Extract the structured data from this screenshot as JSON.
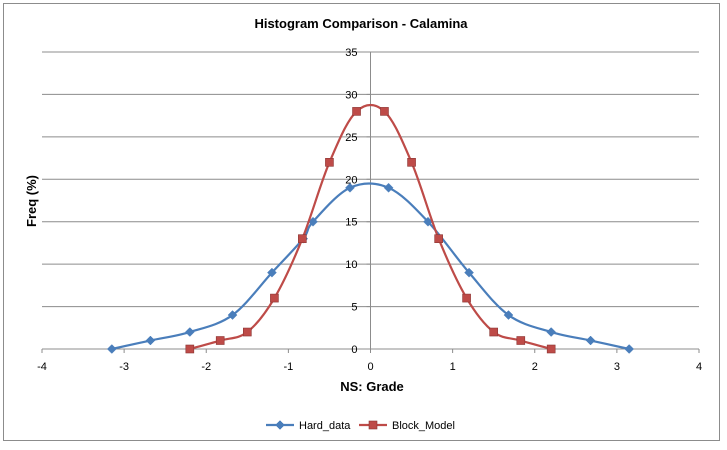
{
  "chart_data": {
    "type": "line",
    "title": "Histogram Comparison - Calamina",
    "xlabel": "NS: Grade",
    "ylabel": "Freq (%)",
    "xlim": [
      -4,
      4
    ],
    "ylim": [
      0,
      35
    ],
    "x_ticks": [
      -4,
      -3,
      -2,
      -1,
      0,
      1,
      2,
      3,
      4
    ],
    "y_ticks": [
      0,
      5,
      10,
      15,
      20,
      25,
      30,
      35
    ],
    "grid": "horizontal",
    "legend_position": "bottom",
    "series": [
      {
        "name": "Hard_data",
        "color": "#4a7ebb",
        "marker": "diamond",
        "x": [
          -3.15,
          -2.68,
          -2.2,
          -1.68,
          -1.2,
          -0.82,
          -0.7,
          -0.25,
          0.22,
          0.7,
          1.2,
          1.68,
          2.2,
          2.68,
          3.15
        ],
        "y": [
          0,
          1,
          2,
          4,
          9,
          13,
          15,
          19,
          19,
          15,
          9,
          4,
          2,
          1,
          0
        ]
      },
      {
        "name": "Block_Model",
        "color": "#be4b48",
        "marker": "square",
        "x": [
          -2.2,
          -1.83,
          -1.5,
          -1.17,
          -0.83,
          -0.5,
          -0.17,
          0.17,
          0.5,
          0.83,
          1.17,
          1.5,
          1.83,
          2.2
        ],
        "y": [
          0,
          1,
          2,
          6,
          13,
          22,
          28,
          28,
          22,
          13,
          6,
          2,
          1,
          0
        ]
      }
    ]
  }
}
